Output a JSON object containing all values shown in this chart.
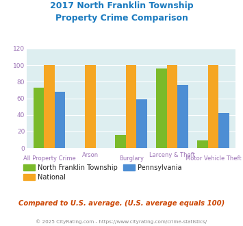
{
  "title_line1": "2017 North Franklin Township",
  "title_line2": "Property Crime Comparison",
  "title_color": "#1a7abf",
  "categories": [
    "All Property Crime",
    "Arson",
    "Burglary",
    "Larceny & Theft",
    "Motor Vehicle Theft"
  ],
  "nft_values": [
    73,
    0,
    16,
    96,
    9
  ],
  "pa_values": [
    68,
    0,
    59,
    76,
    42
  ],
  "national_values": [
    100,
    100,
    100,
    100,
    100
  ],
  "nft_color": "#7aba2a",
  "pa_color": "#4d8ed4",
  "national_color": "#f5a623",
  "ylim": [
    0,
    120
  ],
  "yticks": [
    0,
    20,
    40,
    60,
    80,
    100,
    120
  ],
  "bg_color": "#ddeef0",
  "legend_labels": [
    "North Franklin Township",
    "National",
    "Pennsylvania"
  ],
  "xlabel_color": "#9b72b5",
  "tick_color": "#9b72b5",
  "footer_text": "Compared to U.S. average. (U.S. average equals 100)",
  "footer_color": "#cc4400",
  "copyright_text": "© 2025 CityRating.com - https://www.cityrating.com/crime-statistics/",
  "copyright_color": "#888888",
  "bar_width": 0.26
}
